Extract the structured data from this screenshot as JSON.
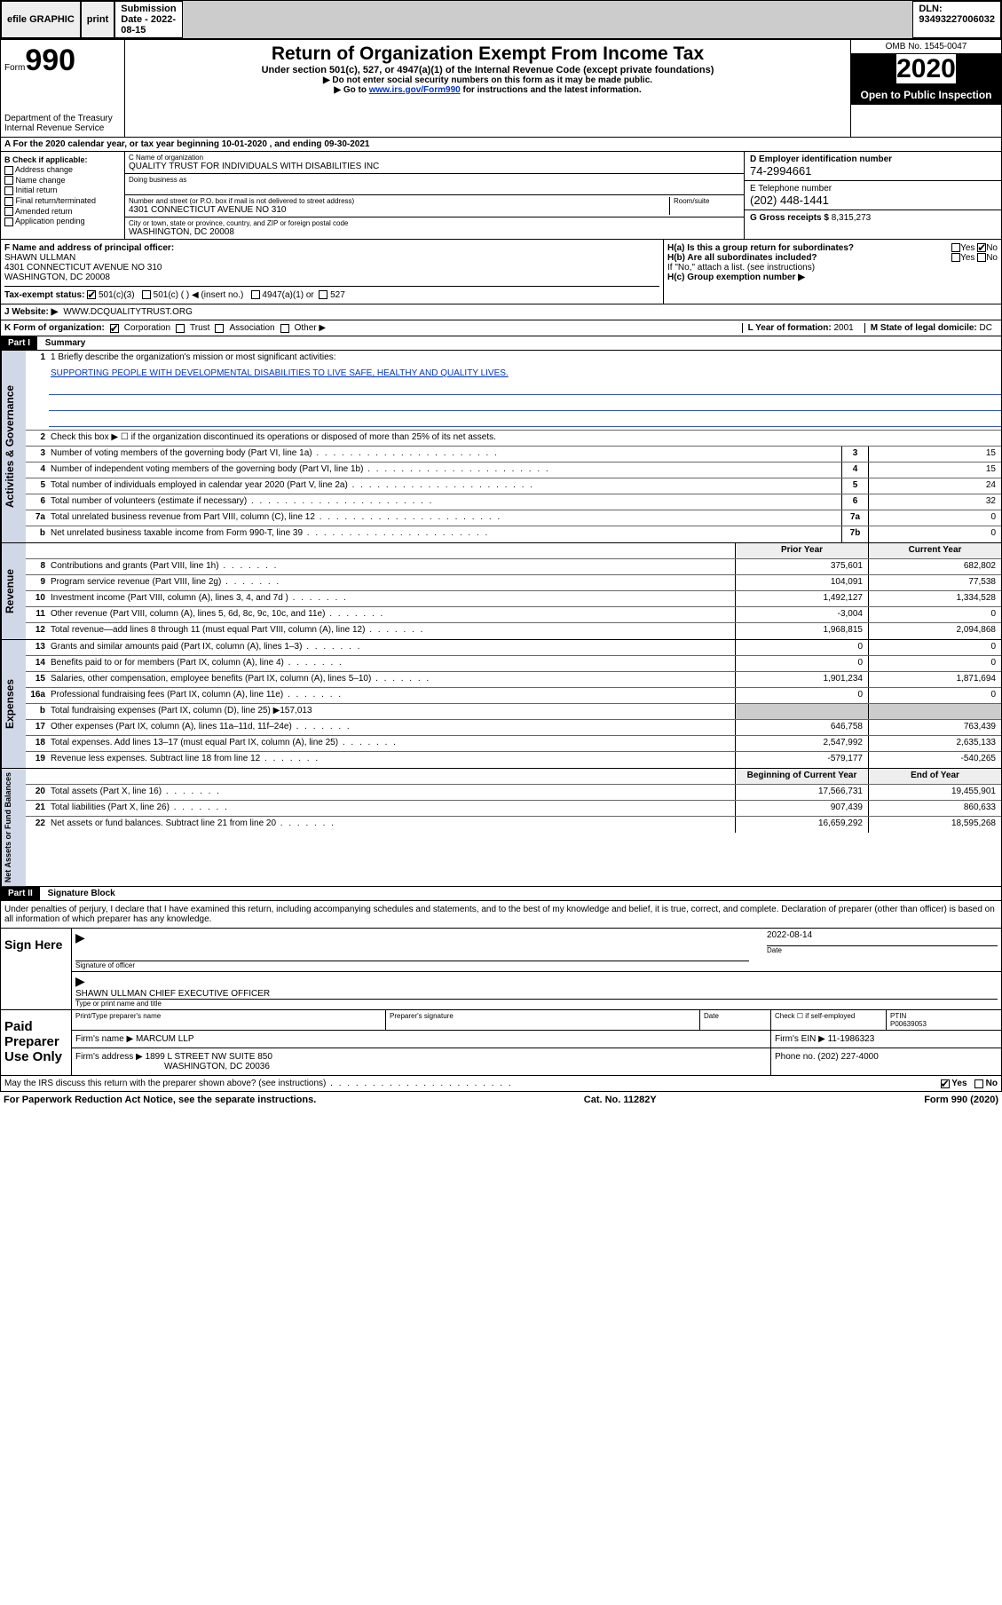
{
  "toolbar": {
    "efile": "efile GRAPHIC",
    "print": "print",
    "subdate_label": "Submission Date - 2022-08-15",
    "dln": "DLN: 93493227006032"
  },
  "header": {
    "form": "Form",
    "num": "990",
    "dept": "Department of the Treasury\nInternal Revenue Service",
    "title": "Return of Organization Exempt From Income Tax",
    "sub": "Under section 501(c), 527, or 4947(a)(1) of the Internal Revenue Code (except private foundations)",
    "note1": "▶ Do not enter social security numbers on this form as it may be made public.",
    "note2_pre": "▶ Go to ",
    "note2_link": "www.irs.gov/Form990",
    "note2_post": " for instructions and the latest information.",
    "omb": "OMB No. 1545-0047",
    "year": "2020",
    "open": "Open to Public Inspection"
  },
  "A": {
    "text": "A For the 2020 calendar year, or tax year beginning 10-01-2020    , and ending 09-30-2021"
  },
  "B": {
    "title": "B Check if applicable:",
    "items": [
      "Address change",
      "Name change",
      "Initial return",
      "Final return/terminated",
      "Amended return",
      "Application pending"
    ]
  },
  "C": {
    "name_label": "C Name of organization",
    "name": "QUALITY TRUST FOR INDIVIDUALS WITH DISABILITIES INC",
    "dba_label": "Doing business as",
    "addr_label": "Number and street (or P.O. box if mail is not delivered to street address)",
    "room_label": "Room/suite",
    "addr": "4301 CONNECTICUT AVENUE NO 310",
    "city_label": "City or town, state or province, country, and ZIP or foreign postal code",
    "city": "WASHINGTON, DC  20008"
  },
  "D": {
    "label": "D Employer identification number",
    "val": "74-2994661"
  },
  "E": {
    "label": "E Telephone number",
    "val": "(202) 448-1441"
  },
  "G": {
    "label": "G Gross receipts $",
    "val": "8,315,273"
  },
  "F": {
    "label": "F  Name and address of principal officer:",
    "name": "SHAWN ULLMAN",
    "addr": "4301 CONNECTICUT AVENUE NO 310\nWASHINGTON, DC  20008"
  },
  "H": {
    "a": "H(a)  Is this a group return for subordinates?",
    "b": "H(b)  Are all subordinates included?",
    "bnote": "If \"No,\" attach a list. (see instructions)",
    "c": "H(c)  Group exemption number ▶",
    "yes": "Yes",
    "no": "No"
  },
  "I": {
    "label": "Tax-exempt status:",
    "opts": [
      "501(c)(3)",
      "501(c) (   ) ◀ (insert no.)",
      "4947(a)(1) or",
      "527"
    ]
  },
  "J": {
    "label": "J   Website: ▶",
    "val": "WWW.DCQUALITYTRUST.ORG"
  },
  "K": {
    "label": "K Form of organization:",
    "opts": [
      "Corporation",
      "Trust",
      "Association",
      "Other ▶"
    ]
  },
  "L": {
    "label": "L Year of formation:",
    "val": "2001"
  },
  "M": {
    "label": "M State of legal domicile:",
    "val": "DC"
  },
  "part1": {
    "hdr": "Part I",
    "title": "Summary"
  },
  "summary": {
    "l1_label": "1  Briefly describe the organization's mission or most significant activities:",
    "l1_val": "SUPPORTING PEOPLE WITH DEVELOPMENTAL DISABILITIES TO LIVE SAFE, HEALTHY AND QUALITY LIVES.",
    "l2": "Check this box ▶ ☐  if the organization discontinued its operations or disposed of more than 25% of its net assets.",
    "l3": {
      "t": "Number of voting members of the governing body (Part VI, line 1a)",
      "n": "3",
      "v": "15"
    },
    "l4": {
      "t": "Number of independent voting members of the governing body (Part VI, line 1b)",
      "n": "4",
      "v": "15"
    },
    "l5": {
      "t": "Total number of individuals employed in calendar year 2020 (Part V, line 2a)",
      "n": "5",
      "v": "24"
    },
    "l6": {
      "t": "Total number of volunteers (estimate if necessary)",
      "n": "6",
      "v": "32"
    },
    "l7a": {
      "t": "Total unrelated business revenue from Part VIII, column (C), line 12",
      "n": "7a",
      "v": "0"
    },
    "l7b": {
      "t": "Net unrelated business taxable income from Form 990-T, line 39",
      "n": "7b",
      "v": "0"
    }
  },
  "revenue": {
    "hdr_prior": "Prior Year",
    "hdr_curr": "Current Year",
    "rows": [
      {
        "n": "8",
        "t": "Contributions and grants (Part VIII, line 1h)",
        "p": "375,601",
        "c": "682,802"
      },
      {
        "n": "9",
        "t": "Program service revenue (Part VIII, line 2g)",
        "p": "104,091",
        "c": "77,538"
      },
      {
        "n": "10",
        "t": "Investment income (Part VIII, column (A), lines 3, 4, and 7d )",
        "p": "1,492,127",
        "c": "1,334,528"
      },
      {
        "n": "11",
        "t": "Other revenue (Part VIII, column (A), lines 5, 6d, 8c, 9c, 10c, and 11e)",
        "p": "-3,004",
        "c": "0"
      },
      {
        "n": "12",
        "t": "Total revenue—add lines 8 through 11 (must equal Part VIII, column (A), line 12)",
        "p": "1,968,815",
        "c": "2,094,868"
      }
    ]
  },
  "expenses": {
    "rows": [
      {
        "n": "13",
        "t": "Grants and similar amounts paid (Part IX, column (A), lines 1–3)",
        "p": "0",
        "c": "0"
      },
      {
        "n": "14",
        "t": "Benefits paid to or for members (Part IX, column (A), line 4)",
        "p": "0",
        "c": "0"
      },
      {
        "n": "15",
        "t": "Salaries, other compensation, employee benefits (Part IX, column (A), lines 5–10)",
        "p": "1,901,234",
        "c": "1,871,694"
      },
      {
        "n": "16a",
        "t": "Professional fundraising fees (Part IX, column (A), line 11e)",
        "p": "0",
        "c": "0"
      },
      {
        "n": "b",
        "t": "Total fundraising expenses (Part IX, column (D), line 25) ▶157,013",
        "p": "",
        "c": ""
      },
      {
        "n": "17",
        "t": "Other expenses (Part IX, column (A), lines 11a–11d, 11f–24e)",
        "p": "646,758",
        "c": "763,439"
      },
      {
        "n": "18",
        "t": "Total expenses. Add lines 13–17 (must equal Part IX, column (A), line 25)",
        "p": "2,547,992",
        "c": "2,635,133"
      },
      {
        "n": "19",
        "t": "Revenue less expenses. Subtract line 18 from line 12",
        "p": "-579,177",
        "c": "-540,265"
      }
    ]
  },
  "net": {
    "hdr_begin": "Beginning of Current Year",
    "hdr_end": "End of Year",
    "rows": [
      {
        "n": "20",
        "t": "Total assets (Part X, line 16)",
        "p": "17,566,731",
        "c": "19,455,901"
      },
      {
        "n": "21",
        "t": "Total liabilities (Part X, line 26)",
        "p": "907,439",
        "c": "860,633"
      },
      {
        "n": "22",
        "t": "Net assets or fund balances. Subtract line 21 from line 20",
        "p": "16,659,292",
        "c": "18,595,268"
      }
    ]
  },
  "vlabels": {
    "gov": "Activities & Governance",
    "rev": "Revenue",
    "exp": "Expenses",
    "net": "Net Assets or Fund Balances"
  },
  "part2": {
    "hdr": "Part II",
    "title": "Signature Block",
    "decl": "Under penalties of perjury, I declare that I have examined this return, including accompanying schedules and statements, and to the best of my knowledge and belief, it is true, correct, and complete. Declaration of preparer (other than officer) is based on all information of which preparer has any knowledge."
  },
  "sign": {
    "here": "Sign Here",
    "sig_label": "Signature of officer",
    "date_label": "Date",
    "date_val": "2022-08-14",
    "name": "SHAWN ULLMAN  CHIEF EXECUTIVE OFFICER",
    "name_label": "Type or print name and title"
  },
  "paid": {
    "here": "Paid Preparer Use Only",
    "col1": "Print/Type preparer's name",
    "col2": "Preparer's signature",
    "col3": "Date",
    "col4a": "Check ☐ if self-employed",
    "col5l": "PTIN",
    "col5v": "P00639053",
    "firm_l": "Firm's name    ▶",
    "firm_v": "MARCUM LLP",
    "ein_l": "Firm's EIN ▶",
    "ein_v": "11-1986323",
    "addr_l": "Firm's address ▶",
    "addr_v": "1899 L STREET NW SUITE 850",
    "addr_v2": "WASHINGTON, DC  20036",
    "phone_l": "Phone no.",
    "phone_v": "(202) 227-4000"
  },
  "discuss": {
    "q": "May the IRS discuss this return with the preparer shown above? (see instructions)",
    "yes": "Yes",
    "no": "No"
  },
  "footer": {
    "pra": "For Paperwork Reduction Act Notice, see the separate instructions.",
    "cat": "Cat. No. 11282Y",
    "form": "Form 990 (2020)"
  }
}
